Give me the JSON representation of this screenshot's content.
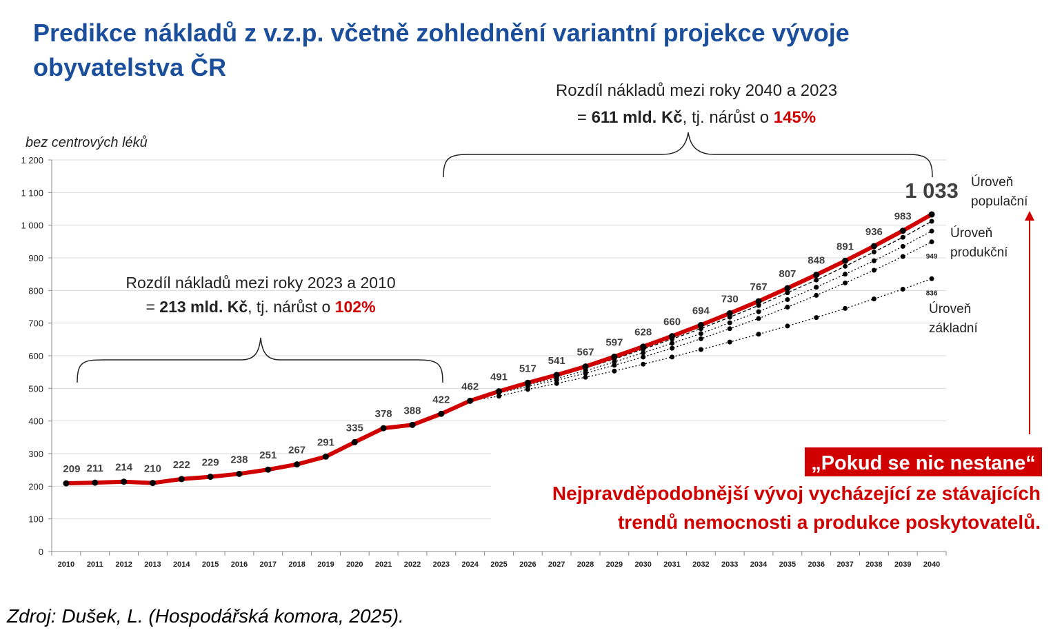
{
  "chart_data": {
    "type": "line",
    "title": [
      "Predikce nákladů z v.z.p. včetně zohlednění variantní projekce vývoje",
      "obyvatelstva ČR"
    ],
    "subtitle": "bez centrových léků",
    "categories": [
      "2010",
      "2011",
      "2012",
      "2013",
      "2014",
      "2015",
      "2016",
      "2017",
      "2018",
      "2019",
      "2020",
      "2021",
      "2022",
      "2023",
      "2024",
      "2025",
      "2026",
      "2027",
      "2028",
      "2029",
      "2030",
      "2031",
      "2032",
      "2033",
      "2034",
      "2035",
      "2036",
      "2037",
      "2038",
      "2039",
      "2040"
    ],
    "series": [
      {
        "color": "#000000",
        "dash": "dashed",
        "values": [
          null,
          null,
          null,
          null,
          null,
          null,
          null,
          null,
          null,
          null,
          null,
          null,
          null,
          null,
          462,
          490,
          514,
          537,
          562,
          590,
          620,
          651,
          683,
          718,
          754,
          793,
          832,
          874,
          918,
          963,
          1012
        ]
      },
      {
        "color": "#000000",
        "dash": "dotted",
        "values": [
          null,
          null,
          null,
          null,
          null,
          null,
          null,
          null,
          null,
          null,
          null,
          null,
          null,
          null,
          462,
          488,
          511,
          531,
          554,
          581,
          609,
          638,
          668,
          701,
          735,
          772,
          810,
          850,
          891,
          935,
          982
        ]
      },
      {
        "color": "#000000",
        "dash": "dotted",
        "values": [
          null,
          null,
          null,
          null,
          null,
          null,
          null,
          null,
          null,
          null,
          null,
          null,
          null,
          null,
          462,
          486,
          506,
          525,
          546,
          571,
          596,
          623,
          652,
          683,
          714,
          749,
          785,
          823,
          862,
          904,
          949
        ],
        "value_labels": [
          null,
          null,
          null,
          null,
          null,
          null,
          null,
          null,
          null,
          null,
          null,
          null,
          null,
          null,
          null,
          null,
          null,
          null,
          null,
          null,
          null,
          null,
          null,
          null,
          null,
          null,
          null,
          null,
          null,
          null,
          "949"
        ]
      },
      {
        "color": "#000000",
        "dash": "dotted",
        "values": [
          null,
          null,
          null,
          null,
          null,
          null,
          null,
          null,
          null,
          null,
          null,
          null,
          null,
          null,
          462,
          476,
          497,
          515,
          534,
          553,
          574,
          596,
          619,
          642,
          666,
          691,
          717,
          745,
          774,
          804,
          836
        ],
        "value_labels": [
          null,
          null,
          null,
          null,
          null,
          null,
          null,
          null,
          null,
          null,
          null,
          null,
          null,
          null,
          null,
          null,
          null,
          null,
          null,
          null,
          null,
          null,
          null,
          null,
          null,
          null,
          null,
          null,
          null,
          null,
          "836"
        ]
      },
      {
        "color": "#d00000",
        "dash": "solid",
        "values": [
          209,
          211,
          214,
          210,
          222,
          229,
          238,
          251,
          267,
          291,
          335,
          378,
          388,
          422,
          462,
          491,
          517,
          541,
          567,
          597,
          628,
          660,
          694,
          730,
          767,
          807,
          848,
          891,
          936,
          983,
          1033
        ],
        "value_labels": [
          "209",
          "211",
          "214",
          "210",
          "222",
          "229",
          "238",
          "251",
          "267",
          "291",
          "335",
          "378",
          "388",
          "422",
          "462",
          "491",
          "517",
          "541",
          "567",
          "597",
          "628",
          "660",
          "694",
          "730",
          "767",
          "807",
          "848",
          "891",
          "936",
          "983",
          "1 033"
        ]
      }
    ],
    "ylim": [
      0,
      1200
    ],
    "yticks": [
      0,
      100,
      200,
      300,
      400,
      500,
      600,
      700,
      800,
      900,
      {
        "value": 1000,
        "label": "1 000"
      },
      {
        "value": 1100,
        "label": "1 100"
      },
      {
        "value": 1200,
        "label": "1 200"
      }
    ],
    "grid": true,
    "annotations": [
      {
        "line1": "Rozdíl nákladů mezi roky 2023 a 2010",
        "line2": [
          "= ",
          "213 mld. Kč",
          ", tj. nárůst o ",
          "102%"
        ]
      },
      {
        "line1": "Rozdíl nákladů mezi roky 2040 a 2023",
        "line2": [
          "= ",
          "611 mld. Kč",
          ", tj. nárůst o ",
          "145%"
        ]
      }
    ],
    "levels": [
      [
        "Úroveň",
        "populační"
      ],
      [
        "Úroveň",
        "produkční"
      ],
      [
        "Úroveň",
        "základní"
      ]
    ],
    "callout": {
      "box": "„Pokud se nic nestane“",
      "lines": [
        "Nejpravděpodobnější vývoj vycházející ze stávajících",
        "trendů nemocnosti a produkce poskytovatelů."
      ]
    },
    "source": "Zdroj: Dušek, L. (Hospodářská komora, 2025)."
  }
}
